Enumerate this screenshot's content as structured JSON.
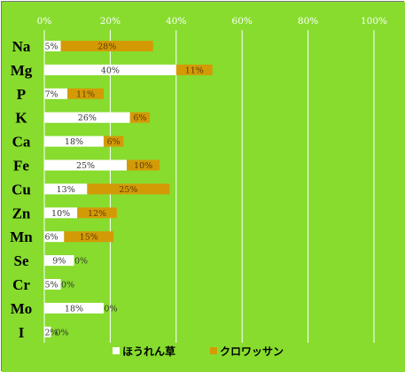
{
  "colors": {
    "background": "#87dc2e",
    "gridline": "#ffffff",
    "series1": "#ffffff",
    "series2": "#d49a06",
    "border": "#7a7a7a"
  },
  "chart_data": {
    "type": "bar",
    "orientation": "horizontal",
    "stacked": true,
    "title": "",
    "xlabel": "",
    "ylabel": "",
    "xlim": [
      0,
      100
    ],
    "grid": true,
    "legend_position": "bottom",
    "tick_labels": [
      "0%",
      "20%",
      "40%",
      "60%",
      "80%",
      "100%"
    ],
    "ticks": [
      0,
      20,
      40,
      60,
      80,
      100
    ],
    "categories": [
      "Na",
      "Mg",
      "P",
      "K",
      "Ca",
      "Fe",
      "Cu",
      "Zn",
      "Mn",
      "Se",
      "Cr",
      "Mo",
      "I"
    ],
    "series": [
      {
        "name": "ほうれん草",
        "values": [
          5,
          40,
          7,
          26,
          18,
          25,
          13,
          10,
          6,
          9,
          5,
          18,
          2
        ],
        "labels": [
          "5%",
          "40%",
          "7%",
          "26%",
          "18%",
          "25%",
          "13%",
          "10%",
          "6%",
          "9%",
          "5%",
          "18%",
          "2%"
        ]
      },
      {
        "name": "クロワッサン",
        "values": [
          28,
          11,
          11,
          6,
          6,
          10,
          25,
          12,
          15,
          0,
          0,
          0,
          0
        ],
        "labels": [
          "28%",
          "11%",
          "11%",
          "6%",
          "6%",
          "10%",
          "25%",
          "12%",
          "15%",
          "0%",
          "0%",
          "0%",
          "0%"
        ]
      }
    ]
  }
}
